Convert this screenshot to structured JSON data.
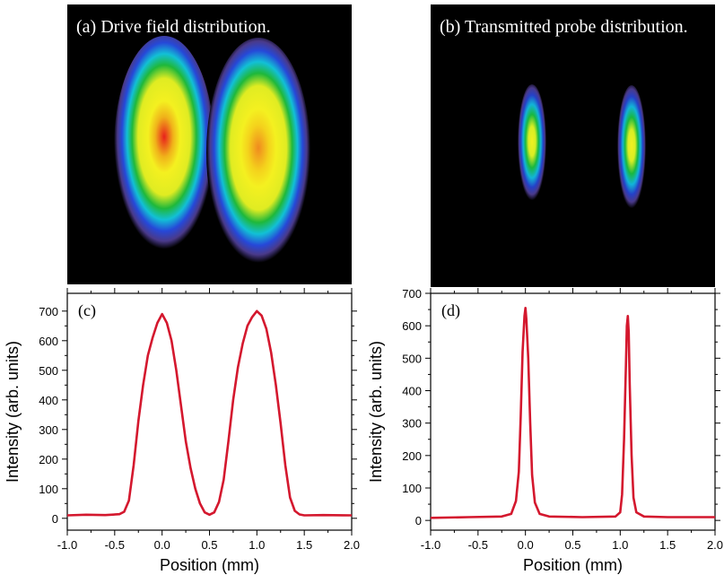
{
  "panels": {
    "a": {
      "title": "(a) Drive field distribution."
    },
    "b": {
      "title": "(b) Transmitted probe distribution."
    }
  },
  "colors": {
    "curve": "#d4182e",
    "image_background": "#000000"
  },
  "chart_data": [
    {
      "type": "line",
      "label": "(c)",
      "xlabel": "Position (mm)",
      "ylabel": "Intensity (arb. units)",
      "xlim": [
        -1.0,
        2.0
      ],
      "ylim": [
        -40,
        760
      ],
      "xticks": [
        "-1.0",
        "-0.5",
        "0.0",
        "0.5",
        "1.0",
        "1.5",
        "2.0"
      ],
      "yticks": [
        "0",
        "100",
        "200",
        "300",
        "400",
        "500",
        "600",
        "700"
      ],
      "series": [
        {
          "x": [
            -1.0,
            -0.8,
            -0.6,
            -0.45,
            -0.4,
            -0.35,
            -0.3,
            -0.25,
            -0.2,
            -0.15,
            -0.1,
            -0.05,
            0.0,
            0.05,
            0.1,
            0.15,
            0.2,
            0.25,
            0.3,
            0.35,
            0.4,
            0.45,
            0.5,
            0.55,
            0.6,
            0.65,
            0.7,
            0.75,
            0.8,
            0.85,
            0.9,
            0.95,
            1.0,
            1.05,
            1.1,
            1.15,
            1.2,
            1.25,
            1.3,
            1.35,
            1.4,
            1.45,
            1.5,
            1.7,
            2.0
          ],
          "y": [
            10,
            12,
            11,
            14,
            22,
            60,
            180,
            330,
            450,
            550,
            610,
            660,
            690,
            660,
            600,
            500,
            380,
            260,
            170,
            100,
            50,
            20,
            12,
            20,
            55,
            130,
            260,
            400,
            510,
            590,
            650,
            680,
            700,
            685,
            640,
            560,
            450,
            320,
            180,
            70,
            25,
            13,
            10,
            11,
            10
          ]
        }
      ]
    },
    {
      "type": "line",
      "label": "(d)",
      "xlabel": "Position (mm)",
      "ylabel": "Intensity (arb. units)",
      "xlim": [
        -1.0,
        2.0
      ],
      "ylim": [
        -30,
        700
      ],
      "xticks": [
        "-1.0",
        "-0.5",
        "0.0",
        "0.5",
        "1.0",
        "1.5",
        "2.0"
      ],
      "yticks": [
        "0",
        "100",
        "200",
        "300",
        "400",
        "500",
        "600",
        "700"
      ],
      "series": [
        {
          "x": [
            -1.0,
            -0.6,
            -0.25,
            -0.15,
            -0.1,
            -0.07,
            -0.05,
            -0.03,
            -0.01,
            0.0,
            0.01,
            0.03,
            0.05,
            0.07,
            0.1,
            0.15,
            0.25,
            0.6,
            0.95,
            1.0,
            1.02,
            1.04,
            1.06,
            1.07,
            1.08,
            1.09,
            1.1,
            1.12,
            1.14,
            1.17,
            1.25,
            1.5,
            2.0
          ],
          "y": [
            8,
            10,
            12,
            20,
            60,
            150,
            320,
            520,
            630,
            655,
            620,
            500,
            300,
            140,
            55,
            20,
            12,
            10,
            12,
            25,
            80,
            250,
            480,
            600,
            630,
            580,
            420,
            200,
            70,
            25,
            12,
            10,
            10
          ]
        }
      ]
    }
  ]
}
